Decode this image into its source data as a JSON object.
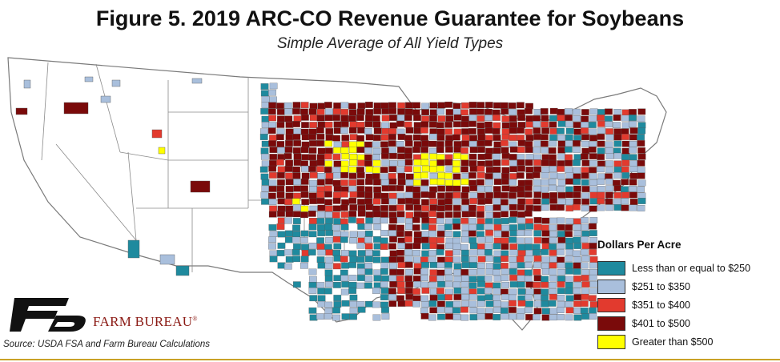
{
  "header": {
    "title": "Figure 5. 2019 ARC-CO Revenue Guarantee for Soybeans",
    "subtitle": "Simple Average of All Yield Types"
  },
  "legend": {
    "title": "Dollars Per Acre",
    "items": [
      {
        "label": "Less than or equal to $250",
        "color": "#1f8a9e"
      },
      {
        "label": "$251 to $350",
        "color": "#a9bfdc"
      },
      {
        "label": "$351 to $400",
        "color": "#e23a2e"
      },
      {
        "label": "$401 to $500",
        "color": "#7a0a0a"
      },
      {
        "label": "Greater than $500",
        "color": "#ffff00"
      }
    ]
  },
  "brand": {
    "name": "FARM BUREAU",
    "mark": "®"
  },
  "source": "Source: USDA FSA and Farm Bureau Calculations",
  "colors": {
    "no_data": "#ffffff",
    "borders": "#7a7a7a",
    "accent_rule": "#c9a227",
    "logo": "#111111"
  }
}
